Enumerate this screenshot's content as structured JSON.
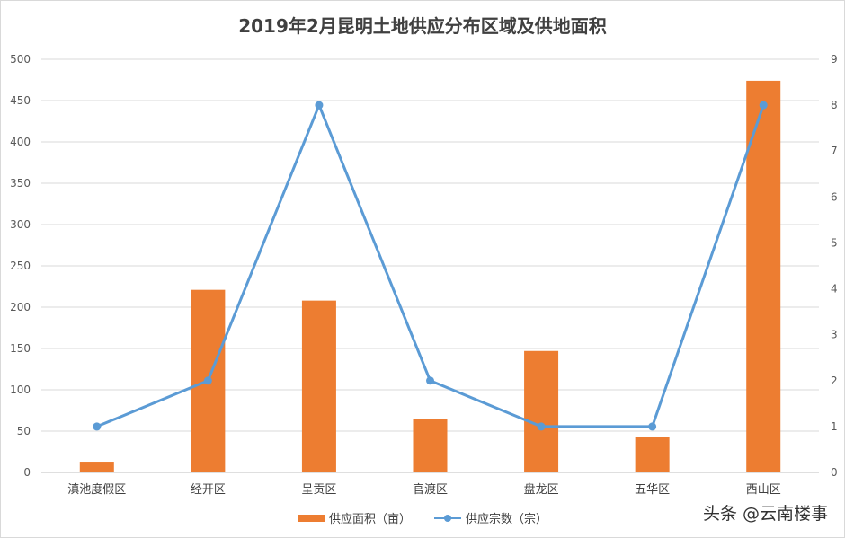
{
  "chart_data": {
    "type": "bar+line",
    "title": "2019年2月昆明土地供应分布区域及供地面积",
    "categories": [
      "滇池度假区",
      "经开区",
      "呈贡区",
      "官渡区",
      "盘龙区",
      "五华区",
      "西山区"
    ],
    "series": [
      {
        "name": "供应面积（亩）",
        "type": "bar",
        "axis": "left",
        "color": "#ed7d31",
        "values": [
          13,
          221,
          208,
          65,
          147,
          43,
          474
        ]
      },
      {
        "name": "供应宗数（宗）",
        "type": "line",
        "axis": "right",
        "color": "#5b9bd5",
        "values": [
          1,
          2,
          8,
          2,
          1,
          1,
          8
        ]
      }
    ],
    "y_left": {
      "min": 0,
      "max": 500,
      "step": 50
    },
    "y_right": {
      "min": 0,
      "max": 9,
      "step": 1
    },
    "grid": true,
    "legend_position": "bottom"
  },
  "watermark": "头条 @云南楼事"
}
